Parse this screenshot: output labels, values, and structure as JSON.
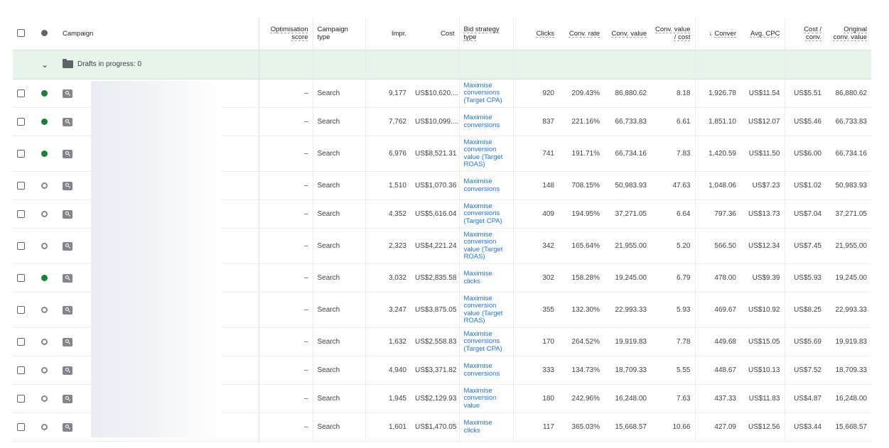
{
  "header": {
    "campaign": "Campaign",
    "optimisation_score": "Optimisation score",
    "campaign_type": "Campaign type",
    "impr": "Impr.",
    "cost": "Cost",
    "bid_strategy_type": "Bid strategy type",
    "clicks": "Clicks",
    "conv_rate": "Conv. rate",
    "conv_value": "Conv. value",
    "conv_value_cost": "Conv. value / cost",
    "conversions": "Conver",
    "avg_cpc": "Avg. CPC",
    "cost_conv": "Cost / conv.",
    "original_conv_value": "Original conv. value",
    "sort_icon": "arrow-down-icon"
  },
  "drafts": {
    "label": "Drafts in progress: 0"
  },
  "rows": [
    {
      "status": "enabled",
      "score": "–",
      "type": "Search",
      "impr": "9,177",
      "cost": "US$10,620....",
      "bid": "Maximise conversions (Target CPA)",
      "clicks": "920",
      "conv_rate": "209.43%",
      "conv_value": "86,880.62",
      "value_cost": "8.18",
      "conversions": "1,926.78",
      "avg_cpc": "US$11.54",
      "cost_conv": "US$5.51",
      "orig_value": "86,880.62"
    },
    {
      "status": "enabled",
      "score": "–",
      "type": "Search",
      "impr": "7,762",
      "cost": "US$10,099....",
      "bid": "Maximise conversions",
      "clicks": "837",
      "conv_rate": "221.16%",
      "conv_value": "66,733.83",
      "value_cost": "6.61",
      "conversions": "1,851.10",
      "avg_cpc": "US$12.07",
      "cost_conv": "US$5.46",
      "orig_value": "66,733.83"
    },
    {
      "status": "enabled",
      "score": "–",
      "type": "Search",
      "impr": "6,976",
      "cost": "US$8,521.31",
      "bid": "Maximise conversion value (Target ROAS)",
      "clicks": "741",
      "conv_rate": "191.71%",
      "conv_value": "66,734.16",
      "value_cost": "7.83",
      "conversions": "1,420.59",
      "avg_cpc": "US$11.50",
      "cost_conv": "US$6.00",
      "orig_value": "66,734.16"
    },
    {
      "status": "paused",
      "score": "–",
      "type": "Search",
      "impr": "1,510",
      "cost": "US$1,070.36",
      "bid": "Maximise conversions",
      "clicks": "148",
      "conv_rate": "708.15%",
      "conv_value": "50,983.93",
      "value_cost": "47.63",
      "conversions": "1,048.06",
      "avg_cpc": "US$7.23",
      "cost_conv": "US$1.02",
      "orig_value": "50,983.93"
    },
    {
      "status": "paused",
      "score": "–",
      "type": "Search",
      "impr": "4,352",
      "cost": "US$5,616.04",
      "bid": "Maximise conversions (Target CPA)",
      "clicks": "409",
      "conv_rate": "194.95%",
      "conv_value": "37,271.05",
      "value_cost": "6.64",
      "conversions": "797.36",
      "avg_cpc": "US$13.73",
      "cost_conv": "US$7.04",
      "orig_value": "37,271.05"
    },
    {
      "status": "paused",
      "score": "–",
      "type": "Search",
      "impr": "2,323",
      "cost": "US$4,221.24",
      "bid": "Maximise conversion value (Target ROAS)",
      "clicks": "342",
      "conv_rate": "165.64%",
      "conv_value": "21,955.00",
      "value_cost": "5.20",
      "conversions": "566.50",
      "avg_cpc": "US$12.34",
      "cost_conv": "US$7.45",
      "orig_value": "21,955.00"
    },
    {
      "status": "enabled",
      "score": "–",
      "type": "Search",
      "impr": "3,032",
      "cost": "US$2,835.58",
      "bid": "Maximise clicks",
      "clicks": "302",
      "conv_rate": "158.28%",
      "conv_value": "19,245.00",
      "value_cost": "6.79",
      "conversions": "478.00",
      "avg_cpc": "US$9.39",
      "cost_conv": "US$5.93",
      "orig_value": "19,245.00"
    },
    {
      "status": "paused",
      "score": "–",
      "type": "Search",
      "impr": "3,247",
      "cost": "US$3,875.05",
      "bid": "Maximise conversion value (Target ROAS)",
      "clicks": "355",
      "conv_rate": "132.30%",
      "conv_value": "22,993.33",
      "value_cost": "5.93",
      "conversions": "469.67",
      "avg_cpc": "US$10.92",
      "cost_conv": "US$8.25",
      "orig_value": "22,993.33"
    },
    {
      "status": "paused",
      "score": "–",
      "type": "Search",
      "impr": "1,632",
      "cost": "US$2,558.83",
      "bid": "Maximise conversions (Target CPA)",
      "clicks": "170",
      "conv_rate": "264.52%",
      "conv_value": "19,919.83",
      "value_cost": "7.78",
      "conversions": "449.68",
      "avg_cpc": "US$15.05",
      "cost_conv": "US$5.69",
      "orig_value": "19,919.83"
    },
    {
      "status": "paused",
      "score": "–",
      "type": "Search",
      "impr": "4,940",
      "cost": "US$3,371.82",
      "bid": "Maximise conversions",
      "clicks": "333",
      "conv_rate": "134.73%",
      "conv_value": "18,709.33",
      "value_cost": "5.55",
      "conversions": "448.67",
      "avg_cpc": "US$10.13",
      "cost_conv": "US$7.52",
      "orig_value": "18,709.33"
    },
    {
      "status": "paused",
      "score": "–",
      "type": "Search",
      "impr": "1,945",
      "cost": "US$2,129.93",
      "bid": "Maximise conversion value",
      "clicks": "180",
      "conv_rate": "242.96%",
      "conv_value": "16,248.00",
      "value_cost": "7.63",
      "conversions": "437.33",
      "avg_cpc": "US$11.83",
      "cost_conv": "US$4.87",
      "orig_value": "16,248.00"
    },
    {
      "status": "paused",
      "score": "–",
      "type": "Search",
      "impr": "1,601",
      "cost": "US$1,470.05",
      "bid": "Maximise clicks",
      "clicks": "117",
      "conv_rate": "365.03%",
      "conv_value": "15,668.57",
      "value_cost": "10.66",
      "conversions": "427.09",
      "avg_cpc": "US$12.56",
      "cost_conv": "US$3.44",
      "orig_value": "15,668.57"
    }
  ],
  "colors": {
    "enabled": "#188038",
    "paused": "#80868b",
    "link": "#1a73e8",
    "draft_bg": "#e6f4ea"
  }
}
